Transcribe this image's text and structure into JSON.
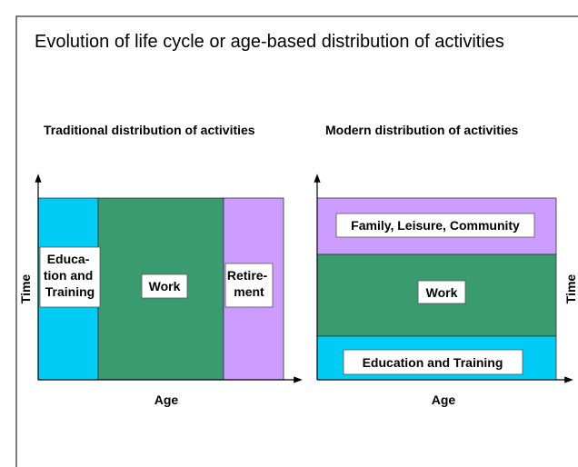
{
  "title": "Evolution of life cycle or age-based distribution of activities",
  "panels": [
    {
      "subtitle": "Traditional distribution of activities",
      "y_label": "Time",
      "x_label": "Age",
      "segments": [
        {
          "label": [
            "Educa-",
            "tion and",
            "Training"
          ]
        },
        {
          "label": [
            "Work"
          ]
        },
        {
          "label": [
            "Retire-",
            "ment"
          ]
        }
      ]
    },
    {
      "subtitle": "Modern distribution of activities",
      "y_label": "Time",
      "x_label": "Age",
      "segments": [
        {
          "label": [
            "Family, Leisure, Community"
          ]
        },
        {
          "label": [
            "Work"
          ]
        },
        {
          "label": [
            "Education and Training"
          ]
        }
      ]
    }
  ]
}
